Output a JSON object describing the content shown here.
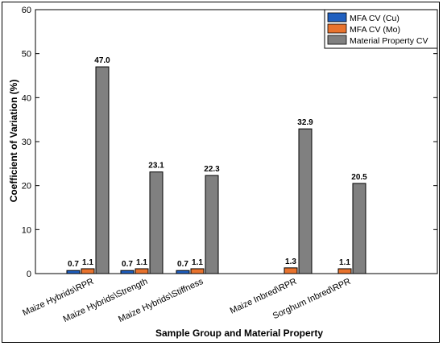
{
  "chart_data": {
    "type": "bar",
    "xlabel": "Sample Group and Material Property",
    "ylabel": "Coefficient of Variation (%)",
    "ylim": [
      0,
      60
    ],
    "yticks": [
      0,
      10,
      20,
      30,
      40,
      50,
      60
    ],
    "grid": false,
    "legend_position": "top-right",
    "categories": [
      "Maize Hybrids\\RPR",
      "Maize Hybrids\\Strength",
      "Maize Hybrids\\Stiffness",
      "Maize Inbred\\RPR",
      "Sorghum Inbred\\RPR"
    ],
    "series": [
      {
        "name": "MFA CV (Cu)",
        "color": "#1f5fbf",
        "values": [
          0.7,
          0.7,
          0.7,
          null,
          null
        ],
        "labels": [
          "0.7",
          "0.7",
          "0.7",
          "",
          ""
        ]
      },
      {
        "name": "MFA CV (Mo)",
        "color": "#e8732e",
        "values": [
          1.1,
          1.1,
          1.1,
          1.3,
          1.1
        ],
        "labels": [
          "1.1",
          "1.1",
          "1.1",
          "1.3",
          "1.1"
        ]
      },
      {
        "name": "Material Property CV",
        "color": "#808080",
        "values": [
          47.0,
          23.1,
          22.3,
          32.9,
          20.5
        ],
        "labels": [
          "47.0",
          "23.1",
          "22.3",
          "32.9",
          "20.5"
        ]
      }
    ]
  }
}
